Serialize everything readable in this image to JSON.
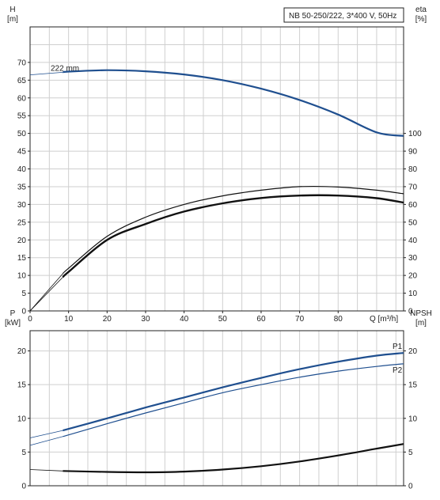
{
  "chart_data": [
    {
      "type": "line",
      "name": "head-efficiency",
      "title": "NB 50-250/222, 3*400 V, 50Hz",
      "xlabel": "Q [m³/h]",
      "ylabel_left": "H",
      "ylabel_left_unit": "[m]",
      "ylabel_right": "eta",
      "ylabel_right_unit": "[%]",
      "xlim": [
        0,
        97
      ],
      "ylim_left": [
        0,
        80
      ],
      "ylim_right": [
        0,
        160
      ],
      "x_ticks": [
        "0",
        "10",
        "20",
        "30",
        "40",
        "50",
        "60",
        "70",
        "80"
      ],
      "y_ticks_left": [
        "0",
        "5",
        "10",
        "15",
        "20",
        "25",
        "30",
        "35",
        "40",
        "45",
        "50",
        "55",
        "60",
        "65",
        "70"
      ],
      "y_ticks_right": [
        "0",
        "10",
        "20",
        "30",
        "40",
        "50",
        "60",
        "70",
        "80",
        "90",
        "100"
      ],
      "grid": true,
      "annotation": "222 mm",
      "colors": {
        "head": "#1f4f8f",
        "eta": "#111111"
      },
      "series": [
        {
          "key": "head",
          "axis": "left",
          "thin_x": [
            0,
            8.5
          ],
          "thin_y": [
            66.5,
            67.2
          ],
          "x": [
            8.5,
            10,
            20,
            30,
            40,
            50,
            60,
            70,
            80,
            90,
            97
          ],
          "y": [
            67.2,
            67.4,
            67.8,
            67.5,
            66.6,
            65,
            62.6,
            59.4,
            55.3,
            50.3,
            49.3
          ]
        },
        {
          "key": "eta",
          "axis": "right",
          "thin_x": [
            0,
            8.5
          ],
          "thin_y": [
            0,
            21
          ],
          "x": [
            8.5,
            10,
            20,
            30,
            40,
            50,
            60,
            70,
            80,
            90,
            97
          ],
          "y": [
            21,
            24,
            42,
            52.8,
            60,
            64.8,
            68,
            70,
            69.8,
            68,
            66
          ]
        },
        {
          "key": "eta2",
          "axis": "right",
          "thin_x": [
            0,
            8.5
          ],
          "thin_y": [
            0,
            19
          ],
          "x": [
            8.5,
            10,
            20,
            30,
            40,
            50,
            60,
            70,
            80,
            90,
            97
          ],
          "y": [
            19,
            22,
            40,
            49,
            56,
            60.6,
            63.6,
            65,
            65,
            63.5,
            61
          ]
        }
      ]
    },
    {
      "type": "line",
      "name": "power-npsh",
      "xlabel": "",
      "ylabel_left": "P",
      "ylabel_left_unit": "[kW]",
      "ylabel_right": "NPSH",
      "ylabel_right_unit": "[m]",
      "xlim": [
        0,
        97
      ],
      "ylim_left": [
        0,
        23
      ],
      "ylim_right": [
        0,
        23
      ],
      "y_ticks_left": [
        "0",
        "5",
        "10",
        "15",
        "20"
      ],
      "y_ticks_right": [
        "0",
        "5",
        "10",
        "15",
        "20"
      ],
      "grid": true,
      "colors": {
        "p1": "#1f4f8f",
        "p2": "#1f4f8f",
        "npsh": "#111111"
      },
      "series": [
        {
          "key": "p1",
          "name": "P1",
          "axis": "left",
          "thin_x": [
            0,
            8.5
          ],
          "thin_y": [
            7.1,
            8.2
          ],
          "x": [
            8.5,
            20,
            30,
            40,
            50,
            60,
            70,
            80,
            90,
            97
          ],
          "y": [
            8.2,
            10,
            11.6,
            13.1,
            14.6,
            16,
            17.3,
            18.4,
            19.3,
            19.7
          ]
        },
        {
          "key": "p2",
          "name": "P2",
          "axis": "left",
          "thin_x": [
            0,
            8.5
          ],
          "thin_y": [
            6.0,
            7.3
          ],
          "x": [
            8.5,
            20,
            30,
            40,
            50,
            60,
            70,
            80,
            90,
            97
          ],
          "y": [
            7.3,
            9.2,
            10.8,
            12.3,
            13.8,
            15,
            16.1,
            17,
            17.7,
            18.1
          ]
        },
        {
          "key": "npsh",
          "axis": "right",
          "thin_x": [
            0,
            8.5
          ],
          "thin_y": [
            2.4,
            2.2
          ],
          "x": [
            8.5,
            20,
            30,
            40,
            50,
            60,
            70,
            80,
            90,
            97
          ],
          "y": [
            2.2,
            2.05,
            2.0,
            2.1,
            2.4,
            2.9,
            3.6,
            4.5,
            5.5,
            6.2
          ]
        }
      ]
    }
  ]
}
